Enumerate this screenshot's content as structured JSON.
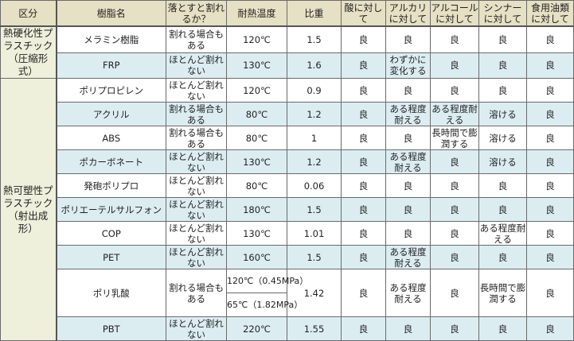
{
  "headers": [
    "区分",
    "樹脂名",
    "落とすと割れるか？",
    "耐熱温度",
    "比重",
    "酸に対して",
    "アルカリに対して",
    "アルコールに対して",
    "シンナーに対して",
    "食用油類に対して"
  ],
  "categories": [
    {
      "label": "熱硬化性プラスチック（圧縮形式）",
      "rows": 2
    },
    {
      "label": "熱可塑性プラスチック（射出成形）",
      "rows": 10
    }
  ],
  "rows": [
    {
      "name": "メラミン樹脂",
      "drop": "割れる場合もある",
      "heat": "120℃",
      "sg": "1.5",
      "acid": "良",
      "alkali": "良",
      "alcohol": "良",
      "thinner": "良",
      "oil": "良"
    },
    {
      "name": "FRP",
      "drop": "ほとんど割れない",
      "heat": "130℃",
      "sg": "1.6",
      "acid": "良",
      "alkali": "わずかに変化する",
      "alcohol": "良",
      "thinner": "良",
      "oil": "良"
    },
    {
      "name": "ポリプロピレン",
      "drop": "ほとんど割れない",
      "heat": "120℃",
      "sg": "0.9",
      "acid": "良",
      "alkali": "良",
      "alcohol": "良",
      "thinner": "良",
      "oil": "良"
    },
    {
      "name": "アクリル",
      "drop": "割れる場合もある",
      "heat": "80℃",
      "sg": "1.2",
      "acid": "良",
      "alkali": "ある程度耐える",
      "alcohol": "ある程度耐える",
      "thinner": "溶ける",
      "oil": "良"
    },
    {
      "name": "ABS",
      "drop": "割れる場合もある",
      "heat": "80℃",
      "sg": "1",
      "acid": "良",
      "alkali": "良",
      "alcohol": "長時間で膨潤する",
      "thinner": "溶ける",
      "oil": "良"
    },
    {
      "name": "ポカーボネート",
      "drop": "ほとんど割れない",
      "heat": "130℃",
      "sg": "1.2",
      "acid": "良",
      "alkali": "ある程度耐える",
      "alcohol": "良",
      "thinner": "溶ける",
      "oil": "良"
    },
    {
      "name": "発砲ポリプロ",
      "drop": "ほとんど割れない",
      "heat": "80℃",
      "sg": "0.06",
      "acid": "良",
      "alkali": "良",
      "alcohol": "良",
      "thinner": "良",
      "oil": "良"
    },
    {
      "name": "ポリエーテルサルフォン",
      "drop": "ほとんど割れない",
      "heat": "180℃",
      "sg": "1.5",
      "acid": "良",
      "alkali": "良",
      "alcohol": "良",
      "thinner": "良",
      "oil": "良"
    },
    {
      "name": "COP",
      "drop": "ほとんど割れない",
      "heat": "130℃",
      "sg": "1.01",
      "acid": "良",
      "alkali": "良",
      "alcohol": "良",
      "thinner": "ある程度耐える",
      "oil": "良"
    },
    {
      "name": "PET",
      "drop": "ほとんど割れない",
      "heat": "160℃",
      "sg": "1.5",
      "acid": "良",
      "alkali": "ある程度耐える",
      "alcohol": "良",
      "thinner": "良",
      "oil": "良"
    },
    {
      "name": "ポリ乳酸",
      "drop": "割れる場合もある",
      "heat": "120℃（0.45MPa）",
      "heat2": "65℃（1.82MPa）",
      "sg": "1.42",
      "acid": "良",
      "alkali": "ある程度耐える",
      "alcohol": "良",
      "thinner": "長時間で膨潤する",
      "oil": "良"
    },
    {
      "name": "PBT",
      "drop": "ほとんど割れない",
      "heat": "220℃",
      "sg": "1.55",
      "acid": "良",
      "alkali": "良",
      "alcohol": "良",
      "thinner": "良",
      "oil": "良"
    }
  ]
}
